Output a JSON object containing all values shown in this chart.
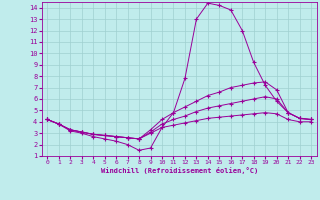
{
  "title": "",
  "xlabel": "Windchill (Refroidissement éolien,°C)",
  "ylabel": "",
  "background_color": "#c0ecec",
  "grid_color": "#a0d0d0",
  "line_color": "#990099",
  "xlim": [
    -0.5,
    23.5
  ],
  "ylim": [
    1,
    14.5
  ],
  "xticks": [
    0,
    1,
    2,
    3,
    4,
    5,
    6,
    7,
    8,
    9,
    10,
    11,
    12,
    13,
    14,
    15,
    16,
    17,
    18,
    19,
    20,
    21,
    22,
    23
  ],
  "yticks": [
    1,
    2,
    3,
    4,
    5,
    6,
    7,
    8,
    9,
    10,
    11,
    12,
    13,
    14
  ],
  "series": [
    [
      4.2,
      3.8,
      3.2,
      3.0,
      2.7,
      2.5,
      2.3,
      2.0,
      1.5,
      1.7,
      3.5,
      4.8,
      7.8,
      13.0,
      14.4,
      14.2,
      13.8,
      12.0,
      9.2,
      7.2,
      5.8,
      4.8,
      4.3,
      4.2
    ],
    [
      4.2,
      3.8,
      3.3,
      3.1,
      2.9,
      2.8,
      2.7,
      2.6,
      2.5,
      3.3,
      4.2,
      4.8,
      5.3,
      5.8,
      6.3,
      6.6,
      7.0,
      7.2,
      7.4,
      7.5,
      6.8,
      4.8,
      4.3,
      4.2
    ],
    [
      4.2,
      3.8,
      3.3,
      3.1,
      2.9,
      2.8,
      2.7,
      2.6,
      2.5,
      3.1,
      3.8,
      4.2,
      4.5,
      4.9,
      5.2,
      5.4,
      5.6,
      5.8,
      6.0,
      6.2,
      6.0,
      4.8,
      4.3,
      4.2
    ],
    [
      4.2,
      3.8,
      3.3,
      3.1,
      2.9,
      2.8,
      2.7,
      2.6,
      2.5,
      3.0,
      3.5,
      3.7,
      3.9,
      4.1,
      4.3,
      4.4,
      4.5,
      4.6,
      4.7,
      4.8,
      4.7,
      4.2,
      4.0,
      4.0
    ]
  ]
}
